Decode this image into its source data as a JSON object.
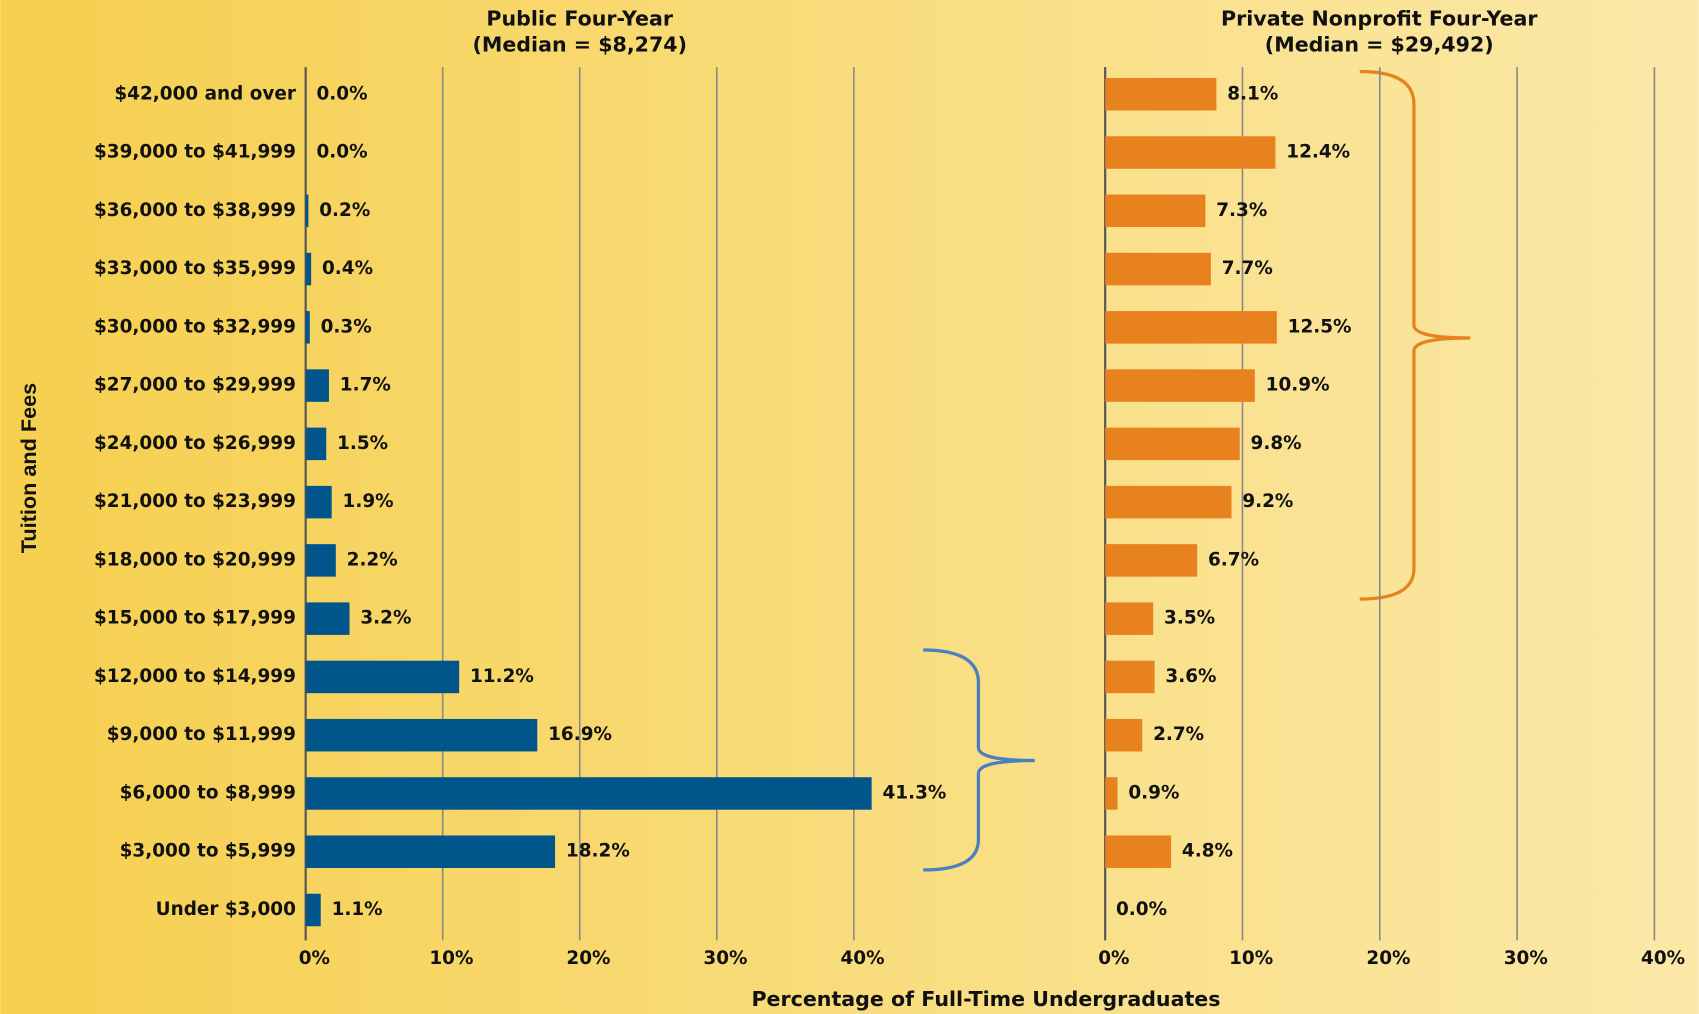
{
  "chart_data": [
    {
      "type": "barh",
      "title": "Public Four-Year",
      "subtitle": "(Median = $8,274)",
      "ylabel": "Tuition and Fees",
      "xlabel": "Percentage of Full-Time Undergraduates",
      "categories": [
        "$42,000 and over",
        "$39,000 to $41,999",
        "$36,000 to $38,999",
        "$33,000 to $35,999",
        "$30,000 to $32,999",
        "$27,000 to $29,999",
        "$24,000 to $26,999",
        "$21,000 to $23,999",
        "$18,000 to $20,999",
        "$15,000 to $17,999",
        "$12,000 to $14,999",
        "$9,000 to $11,999",
        "$6,000 to $8,999",
        "$3,000 to $5,999",
        "Under $3,000"
      ],
      "values": [
        0,
        0,
        0.2,
        0.4,
        0.3,
        1.7,
        1.5,
        1.9,
        2.2,
        3.2,
        11.2,
        16.9,
        41.3,
        18.2,
        1.1
      ],
      "value_labels": [
        "0.0%",
        "0.0%",
        "0.2%",
        "0.4%",
        "0.3%",
        "1.7%",
        "1.5%",
        "1.9%",
        "2.2%",
        "3.2%",
        "11.2%",
        "16.9%",
        "41.3%",
        "18.2%",
        "1.1%"
      ],
      "color": "#00568a",
      "xlim": [
        0,
        40
      ],
      "xticks": [
        {
          "value": 0,
          "label": "0%"
        },
        {
          "value": 10,
          "label": "10%"
        },
        {
          "value": 20,
          "label": "20%"
        },
        {
          "value": 30,
          "label": "30%"
        },
        {
          "value": 40,
          "label": "40%"
        }
      ],
      "grid": true
    },
    {
      "type": "barh",
      "title": "Private Nonprofit Four-Year",
      "subtitle": "(Median = $29,492)",
      "values": [
        8.1,
        12.4,
        7.3,
        7.7,
        12.5,
        10.9,
        9.8,
        9.2,
        6.7,
        3.5,
        3.6,
        2.7,
        0.9,
        4.8,
        0
      ],
      "value_labels": [
        "8.1%",
        "12.4%",
        "7.3%",
        "7.7%",
        "12.5%",
        "10.9%",
        "9.8%",
        "9.2%",
        "6.7%",
        "3.5%",
        "3.6%",
        "2.7%",
        "0.9%",
        "4.8%",
        "0.0%"
      ],
      "color": "#e8821e",
      "xlim": [
        0,
        40
      ],
      "xticks": [
        {
          "value": 0,
          "label": "0%"
        },
        {
          "value": 10,
          "label": "10%"
        },
        {
          "value": 20,
          "label": "20%"
        },
        {
          "value": 30,
          "label": "30%"
        },
        {
          "value": 40,
          "label": "40%"
        }
      ],
      "grid": true
    }
  ]
}
